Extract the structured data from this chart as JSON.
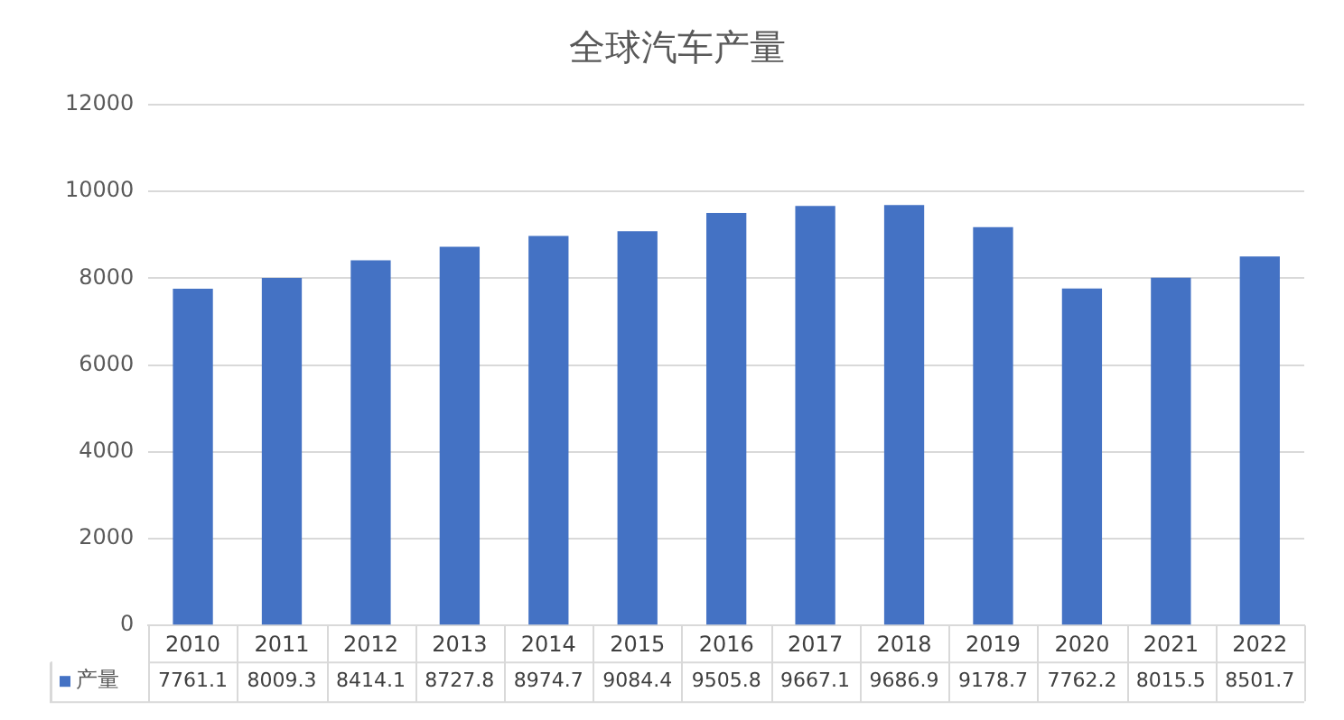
{
  "chart_data": {
    "type": "bar",
    "title": "全球汽车产量",
    "categories": [
      "2010",
      "2011",
      "2012",
      "2013",
      "2014",
      "2015",
      "2016",
      "2017",
      "2018",
      "2019",
      "2020",
      "2021",
      "2022"
    ],
    "series": [
      {
        "name": "产量",
        "color": "#4472c4",
        "values": [
          7761.1,
          8009.3,
          8414.1,
          8727.8,
          8974.7,
          9084.4,
          9505.8,
          9667.1,
          9686.9,
          9178.7,
          7762.2,
          8015.5,
          8501.7
        ]
      }
    ],
    "ylim": [
      0,
      12000
    ],
    "yticks": [
      0,
      2000,
      4000,
      6000,
      8000,
      10000,
      12000
    ],
    "grid": "y",
    "legend": "bottom",
    "data_labels": true
  }
}
